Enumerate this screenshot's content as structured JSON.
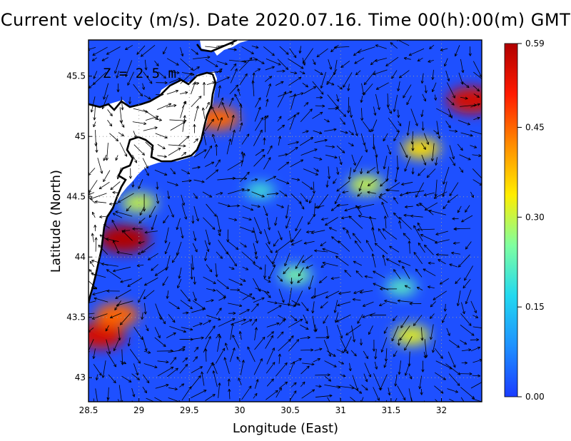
{
  "title": "Current velocity (m/s). Date 2020.07.16. Time 00(h):00(m) GMT",
  "depth_label": "Z = 2.5 m",
  "x_axis": {
    "label": "Longitude (East)",
    "range": [
      28.5,
      32.4
    ],
    "ticks": [
      "28.5",
      "29",
      "29.5",
      "30",
      "30.5",
      "31",
      "31.5",
      "32"
    ],
    "tick_values": [
      28.5,
      29,
      29.5,
      30,
      30.5,
      31,
      31.5,
      32
    ]
  },
  "y_axis": {
    "label": "Latitude (North)",
    "range": [
      42.8,
      45.8
    ],
    "ticks": [
      "43",
      "43.5",
      "44",
      "44.5",
      "45",
      "45.5"
    ],
    "tick_values": [
      43,
      43.5,
      44,
      44.5,
      45,
      45.5
    ]
  },
  "colorbar": {
    "ticks": [
      "0.00",
      "0.15",
      "0.30",
      "0.45",
      "0.59"
    ],
    "tick_values": [
      0.0,
      0.15,
      0.3,
      0.45,
      0.59
    ],
    "colors": [
      "#1a3cff",
      "#1e90ff",
      "#22d8f0",
      "#7fffa0",
      "#ffee00",
      "#ff8c00",
      "#ff1a00",
      "#b00000"
    ]
  },
  "grid": "dotted",
  "map_colors": {
    "land": "#ffffff",
    "coast": "#000000",
    "low": "#1e50ff"
  },
  "speed_hotspots": [
    {
      "lon": 28.85,
      "lat": 44.15,
      "speed": 0.59
    },
    {
      "lon": 28.62,
      "lat": 43.35,
      "speed": 0.55
    },
    {
      "lon": 28.78,
      "lat": 43.52,
      "speed": 0.45
    },
    {
      "lon": 32.3,
      "lat": 45.3,
      "speed": 0.55
    },
    {
      "lon": 29.78,
      "lat": 45.15,
      "speed": 0.45
    },
    {
      "lon": 31.8,
      "lat": 44.9,
      "speed": 0.35
    },
    {
      "lon": 31.7,
      "lat": 43.35,
      "speed": 0.32
    },
    {
      "lon": 31.25,
      "lat": 44.6,
      "speed": 0.3
    },
    {
      "lon": 30.55,
      "lat": 43.85,
      "speed": 0.25
    },
    {
      "lon": 29.0,
      "lat": 44.45,
      "speed": 0.3
    },
    {
      "lon": 30.2,
      "lat": 44.55,
      "speed": 0.2
    },
    {
      "lon": 31.6,
      "lat": 43.75,
      "speed": 0.22
    }
  ]
}
